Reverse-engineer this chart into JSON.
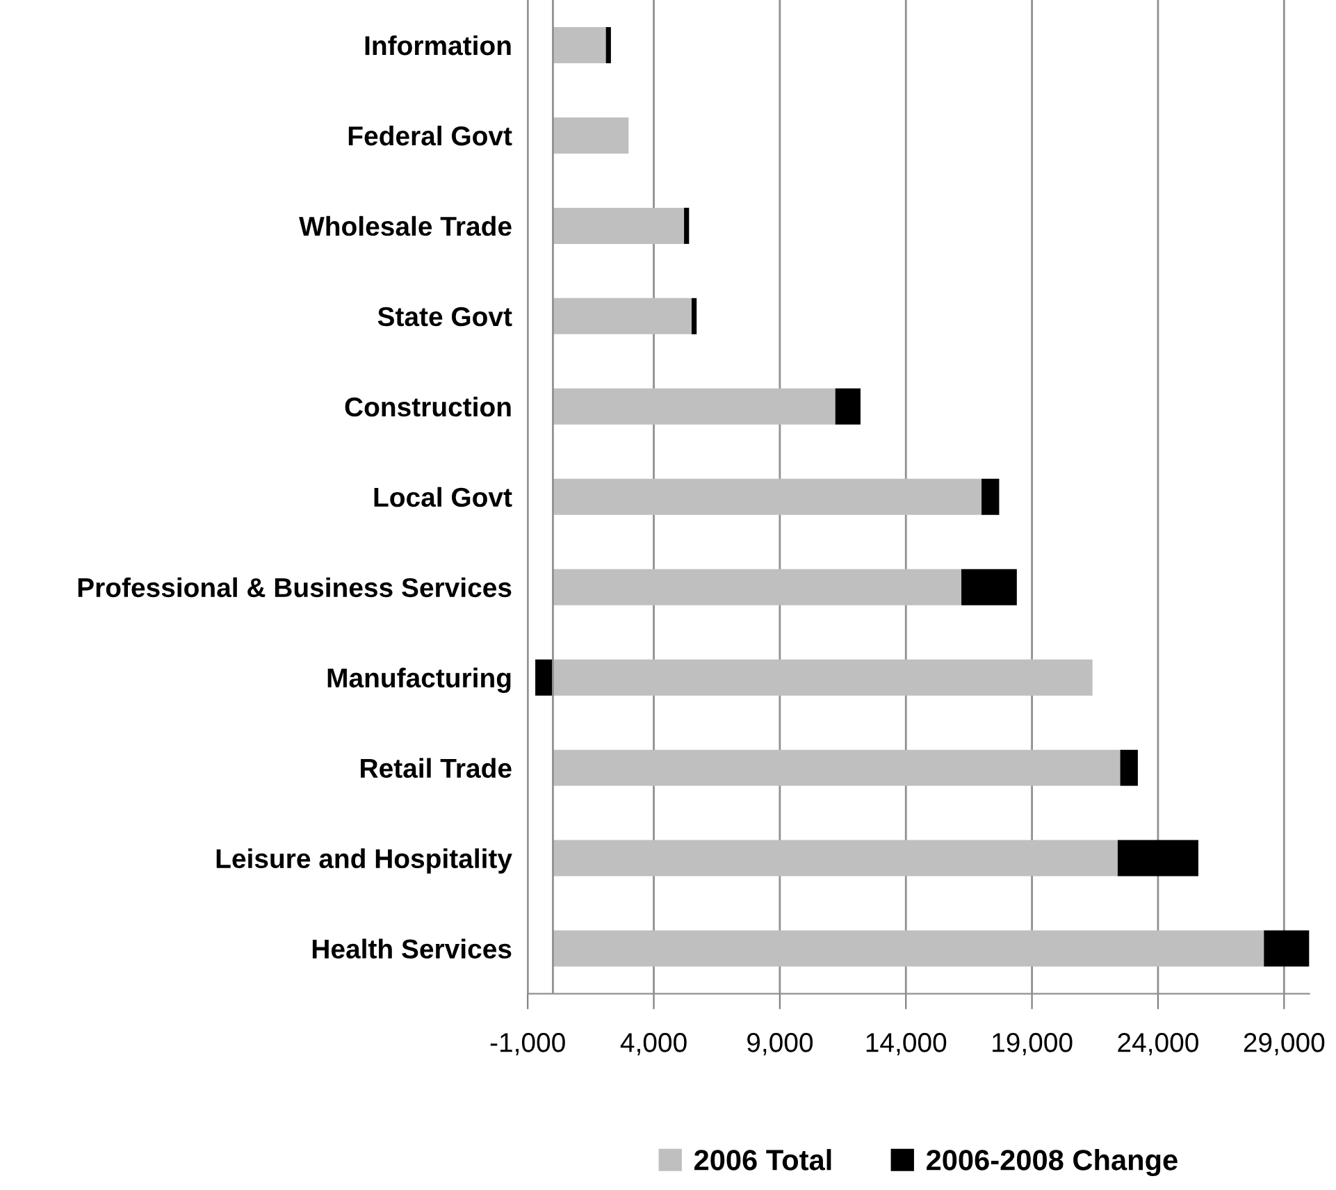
{
  "chart_data": {
    "type": "bar",
    "orientation": "horizontal",
    "stacked": true,
    "categories": [
      "Information",
      "Federal Govt",
      "Wholesale Trade",
      "State Govt",
      "Construction",
      "Local Govt",
      "Professional & Business Services",
      "Manufacturing",
      "Retail Trade",
      "Leisure and Hospitality",
      "Health Services"
    ],
    "series": [
      {
        "name": "2006 Total",
        "color": "#bfbfbf",
        "values": [
          2100,
          3000,
          5200,
          5500,
          11200,
          17000,
          16200,
          21400,
          22500,
          22400,
          28200
        ]
      },
      {
        "name": "2006-2008 Change",
        "color": "#000000",
        "values": [
          200,
          0,
          200,
          200,
          1000,
          700,
          2200,
          -700,
          700,
          3200,
          1800
        ]
      }
    ],
    "xlim": [
      -1000,
      30000
    ],
    "xticks": [
      {
        "value": -1000,
        "label": "-1,000"
      },
      {
        "value": 4000,
        "label": "4,000"
      },
      {
        "value": 9000,
        "label": "9,000"
      },
      {
        "value": 14000,
        "label": "14,000"
      },
      {
        "value": 19000,
        "label": "19,000"
      },
      {
        "value": 24000,
        "label": "24,000"
      },
      {
        "value": 29000,
        "label": "29,000"
      }
    ],
    "grid": "x",
    "legend": "bottom"
  }
}
